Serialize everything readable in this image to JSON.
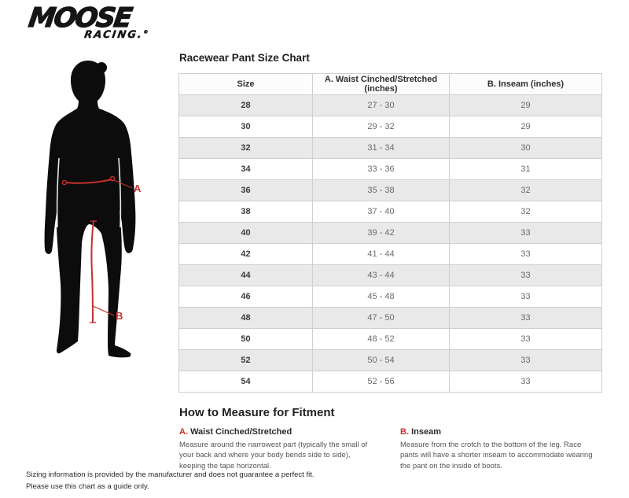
{
  "logo": {
    "brand": "MOOSE",
    "sub": "RACING.",
    "reg": "®"
  },
  "figure": {
    "marker_a": "A",
    "marker_b": "B"
  },
  "size_chart": {
    "title": "Racewear Pant Size Chart",
    "columns": [
      "Size",
      "A. Waist Cinched/Stretched (inches)",
      "B. Inseam (inches)"
    ],
    "rows": [
      [
        "28",
        "27 - 30",
        "29"
      ],
      [
        "30",
        "29 - 32",
        "29"
      ],
      [
        "32",
        "31 - 34",
        "30"
      ],
      [
        "34",
        "33 - 36",
        "31"
      ],
      [
        "36",
        "35 - 38",
        "32"
      ],
      [
        "38",
        "37 - 40",
        "32"
      ],
      [
        "40",
        "39 - 42",
        "33"
      ],
      [
        "42",
        "41 - 44",
        "33"
      ],
      [
        "44",
        "43 - 44",
        "33"
      ],
      [
        "46",
        "45 - 48",
        "33"
      ],
      [
        "48",
        "47 - 50",
        "33"
      ],
      [
        "50",
        "48 - 52",
        "33"
      ],
      [
        "52",
        "50 - 54",
        "33"
      ],
      [
        "54",
        "52 - 56",
        "33"
      ]
    ]
  },
  "how_to": {
    "title": "How to Measure for Fitment",
    "items": [
      {
        "letter": "A.",
        "name": "Waist Cinched/Stretched",
        "description": "Measure around the narrowest part (typically the small of your back and where your body bends side to side), keeping the tape horizontal."
      },
      {
        "letter": "B.",
        "name": "Inseam",
        "description": "Measure from the crotch to the bottom of the leg. Race pants will have a shorter inseam to accommodate wearing the pant on the inside of boots."
      }
    ]
  },
  "footer": {
    "line1": "Sizing information is provided by the manufacturer and does not guarantee a perfect fit.",
    "line2": "Please use this chart as a guide only."
  },
  "colors": {
    "accent_red": "#c5312b",
    "row_alt": "#e9e9e9",
    "border": "#cfcfcf",
    "ink": "#151515"
  }
}
